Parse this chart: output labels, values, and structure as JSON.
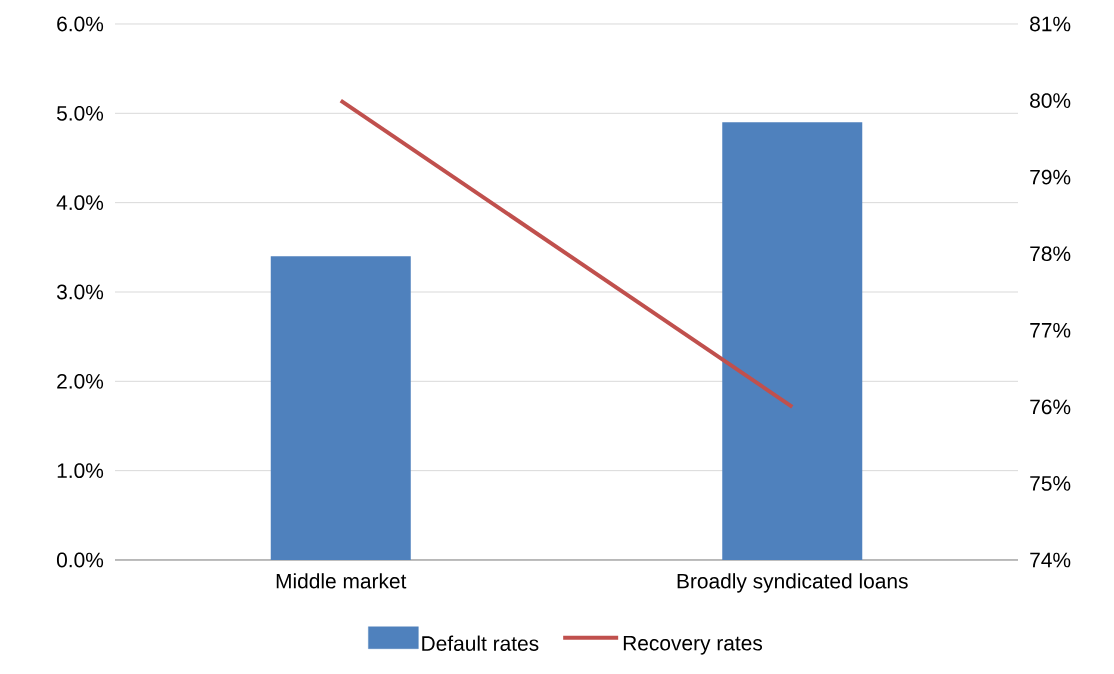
{
  "chart_data": {
    "type": "bar",
    "categories": [
      "Middle market",
      "Broadly syndicated loans"
    ],
    "series": [
      {
        "name": "Default rates",
        "color": "#4f81bd",
        "values": [
          3.4,
          4.9
        ]
      },
      {
        "name": "Recovery rates",
        "type": "line",
        "axis": "y2",
        "color": "#c0504d",
        "values": [
          80,
          76
        ]
      }
    ],
    "ylim": [
      0,
      6
    ],
    "yticks": [
      {
        "value": 0,
        "label": "0.0%"
      },
      {
        "value": 1,
        "label": "1.0%"
      },
      {
        "value": 2,
        "label": "2.0%"
      },
      {
        "value": 3,
        "label": "3.0%"
      },
      {
        "value": 4,
        "label": "4.0%"
      },
      {
        "value": 5,
        "label": "5.0%"
      },
      {
        "value": 6,
        "label": "6.0%"
      }
    ],
    "y2lim": [
      74,
      81
    ],
    "y2ticks": [
      {
        "value": 74,
        "label": "74%"
      },
      {
        "value": 75,
        "label": "75%"
      },
      {
        "value": 76,
        "label": "76%"
      },
      {
        "value": 77,
        "label": "77%"
      },
      {
        "value": 78,
        "label": "78%"
      },
      {
        "value": 79,
        "label": "79%"
      },
      {
        "value": 80,
        "label": "80%"
      },
      {
        "value": 81,
        "label": "81%"
      }
    ],
    "grid": "y",
    "legend": "bottom"
  }
}
